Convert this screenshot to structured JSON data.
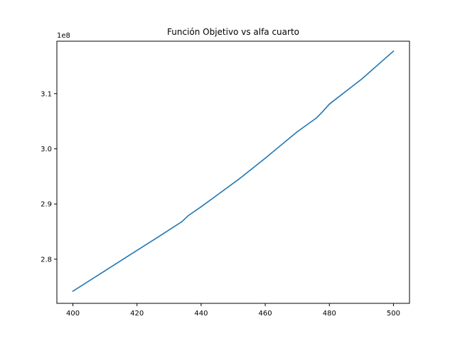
{
  "chart_data": {
    "type": "line",
    "title": "Función Objetivo vs alfa cuarto",
    "xlabel": "",
    "ylabel": "",
    "y_offset_label": "1e8",
    "xlim": [
      395,
      505
    ],
    "ylim": [
      2.72,
      3.195
    ],
    "x_ticks": [
      400,
      420,
      440,
      460,
      480,
      500
    ],
    "x_tick_labels": [
      "400",
      "420",
      "440",
      "460",
      "480",
      "500"
    ],
    "y_ticks": [
      2.8,
      2.9,
      3.0,
      3.1
    ],
    "y_tick_labels": [
      "2.8",
      "2.9",
      "3.0",
      "3.1"
    ],
    "grid": false,
    "series": [
      {
        "color": "#1f77b4",
        "x": [
          400,
          410,
          420,
          426,
          430,
          434,
          436,
          440,
          444,
          452,
          460,
          470,
          476,
          478,
          480,
          490,
          500
        ],
        "y": [
          2.742,
          2.779,
          2.816,
          2.838,
          2.853,
          2.868,
          2.879,
          2.895,
          2.912,
          2.946,
          2.983,
          3.031,
          3.056,
          3.068,
          3.081,
          3.126,
          3.177
        ]
      }
    ]
  }
}
